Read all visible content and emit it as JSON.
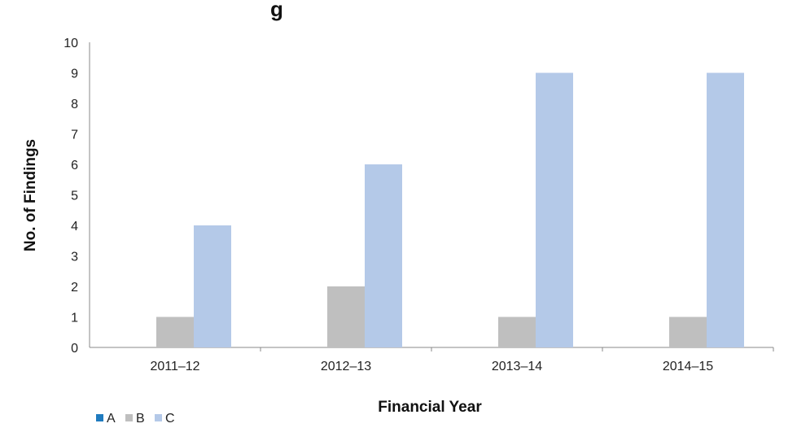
{
  "chart_data": {
    "type": "bar",
    "title_fragment": "g",
    "xlabel": "Financial Year",
    "ylabel": "No. of Findings",
    "categories": [
      "2011–12",
      "2012–13",
      "2013–14",
      "2014–15"
    ],
    "ylim": [
      0,
      10
    ],
    "yticks": [
      "0",
      "1",
      "2",
      "3",
      "4",
      "5",
      "6",
      "7",
      "8",
      "9",
      "10"
    ],
    "grid": false,
    "legend_position": "bottom-left",
    "series": [
      {
        "name": "A",
        "color": "#1f7bbf",
        "values": [
          0,
          0,
          0,
          0
        ]
      },
      {
        "name": "B",
        "color": "#bfbfbf",
        "values": [
          1,
          2,
          1,
          1
        ]
      },
      {
        "name": "C",
        "color": "#b4c9e8",
        "values": [
          4,
          6,
          9,
          9
        ]
      }
    ]
  }
}
